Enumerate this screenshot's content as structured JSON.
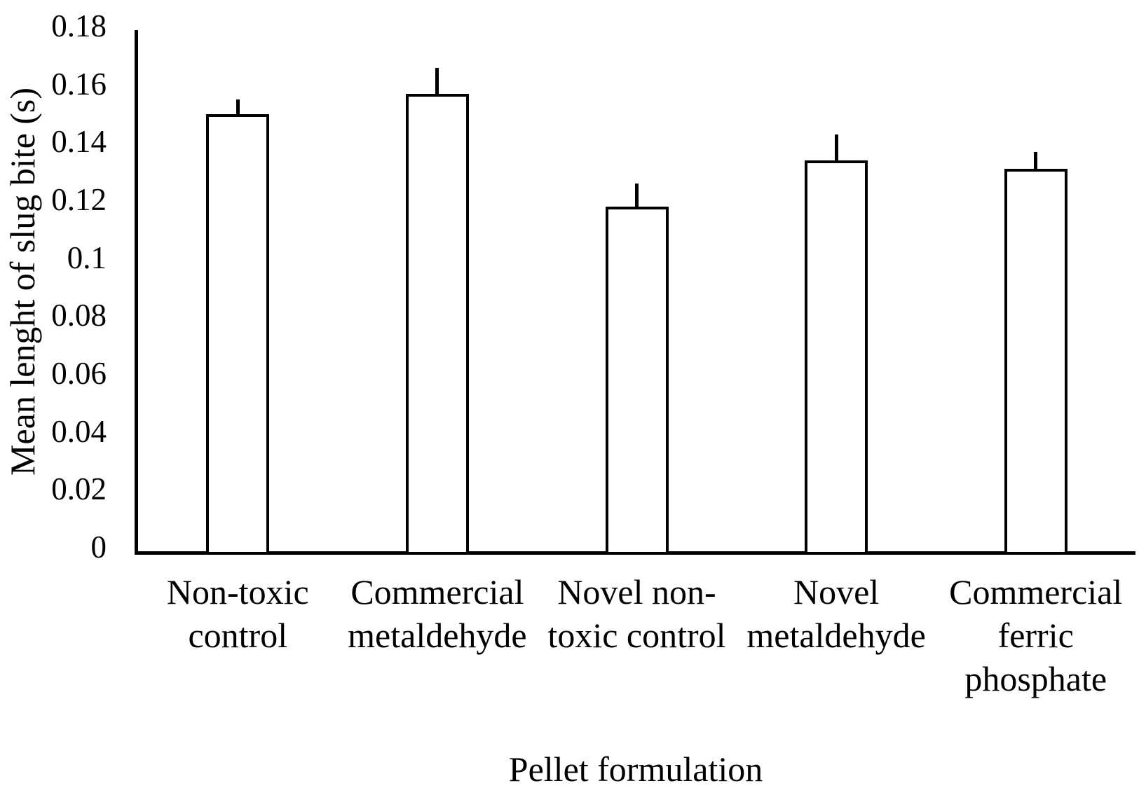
{
  "chart_data": {
    "type": "bar",
    "title": "",
    "xlabel": "Pellet formulation",
    "ylabel": "Mean lenght of slug bite (s)",
    "categories": [
      "Non-toxic control",
      "Commercial metaldehyde",
      "Novel non-toxic control",
      "Novel metaldehyde",
      "Commercial ferric phosphate"
    ],
    "category_label_lines": [
      [
        "Non-toxic",
        "control"
      ],
      [
        "Commercial",
        "metaldehyde"
      ],
      [
        "Novel non-",
        "toxic control"
      ],
      [
        "Novel",
        "metaldehyde"
      ],
      [
        "Commercial",
        "ferric",
        "phosphate"
      ]
    ],
    "values": [
      0.151,
      0.158,
      0.119,
      0.135,
      0.132
    ],
    "error_plus": [
      0.005,
      0.009,
      0.008,
      0.009,
      0.006
    ],
    "error_direction": "plus",
    "error_caps": false,
    "ylim": [
      0,
      0.18
    ],
    "ytick_values": [
      0,
      0.02,
      0.04,
      0.06,
      0.08,
      0.1,
      0.12,
      0.14,
      0.16,
      0.18
    ],
    "ytick_labels": [
      "0",
      "0.02",
      "0.04",
      "0.06",
      "0.08",
      "0.1",
      "0.12",
      "0.14",
      "0.16",
      "0.18"
    ],
    "grid": false,
    "legend": false,
    "bar_fill_color": "#ffffff",
    "bar_border_color": "#000000",
    "axis_color": "#000000",
    "background_color": "#ffffff"
  }
}
